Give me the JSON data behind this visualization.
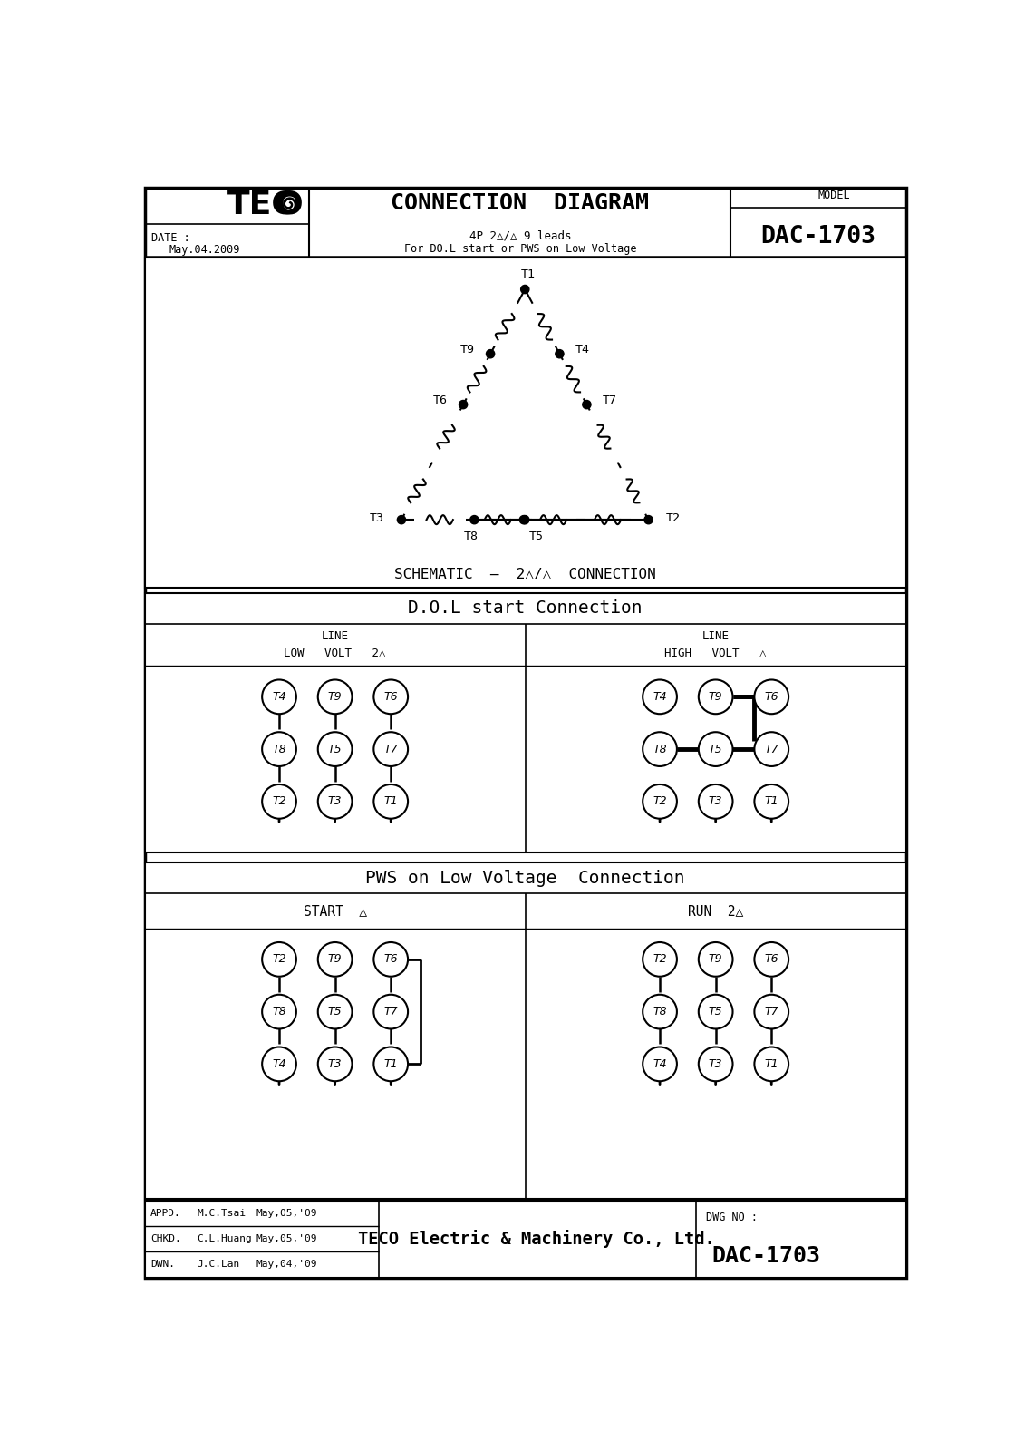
{
  "title": "CONNECTION  DIAGRAM",
  "subtitle1": "4P 2△/△ 9 leads",
  "subtitle2": "For DO.L start or PWS on Low Voltage",
  "model_label": "MODEL",
  "model": "DAC-1703",
  "date_label": "DATE :",
  "date": "May.04.2009",
  "schematic_label": "SCHEMATIC  –  2△/△  CONNECTION",
  "dol_title": "D.O.L start Connection",
  "pws_title": "PWS on Low Voltage  Connection",
  "footer_rows": [
    [
      "APPD.",
      "M.C.Tsai",
      "May,05,'09"
    ],
    [
      "CHKD.",
      "C.L.Huang",
      "May,05,'09"
    ],
    [
      "DWN.",
      "J.C.Lan",
      "May,04,'09"
    ]
  ],
  "footer_company": "TECO Electric & Machinery Co., Ltd.",
  "footer_dwg_label": "DWG NO :",
  "footer_dwg": "DAC-1703",
  "bg_color": "#ffffff",
  "line_color": "#000000"
}
